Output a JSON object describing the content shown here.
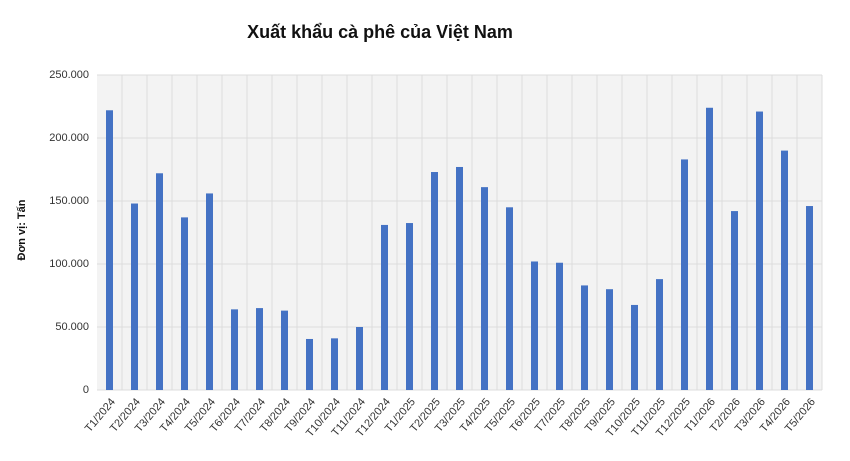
{
  "chart_data": {
    "type": "bar",
    "title": "Xuất khẩu cà phê của Việt Nam",
    "y_label": "Đơn vị: Tấn",
    "categories": [
      "T1/2024",
      "T2/2024",
      "T3/2024",
      "T4/2024",
      "T5/2024",
      "T6/2024",
      "T7/2024",
      "T8/2024",
      "T9/2024",
      "T10/2024",
      "T11/2024",
      "T12/2024",
      "T1/2025",
      "T2/2025",
      "T3/2025",
      "T4/2025",
      "T5/2025",
      "T6/2025",
      "T7/2025",
      "T8/2025",
      "T9/2025",
      "T10/2025",
      "T11/2025",
      "T12/2025",
      "T1/2026",
      "T2/2026",
      "T3/2026",
      "T4/2026",
      "T5/2026"
    ],
    "values": [
      222000,
      148000,
      172000,
      137000,
      156000,
      64000,
      65000,
      63000,
      40500,
      41000,
      50000,
      131000,
      132500,
      173000,
      177000,
      161000,
      145000,
      102000,
      101000,
      83000,
      80000,
      67500,
      88000,
      183000,
      224000,
      142000,
      221000,
      190000,
      146000
    ],
    "color": "#4472c4",
    "ylim": [
      0,
      250000
    ],
    "yticks": [
      0,
      {
        "value": 50000,
        "label": "50.000"
      },
      {
        "value": 100000,
        "label": "100.000"
      },
      {
        "value": 150000,
        "label": "150.000"
      },
      {
        "value": 200000,
        "label": "200.000"
      },
      {
        "value": 250000,
        "label": "250.000"
      }
    ],
    "grid": true
  }
}
